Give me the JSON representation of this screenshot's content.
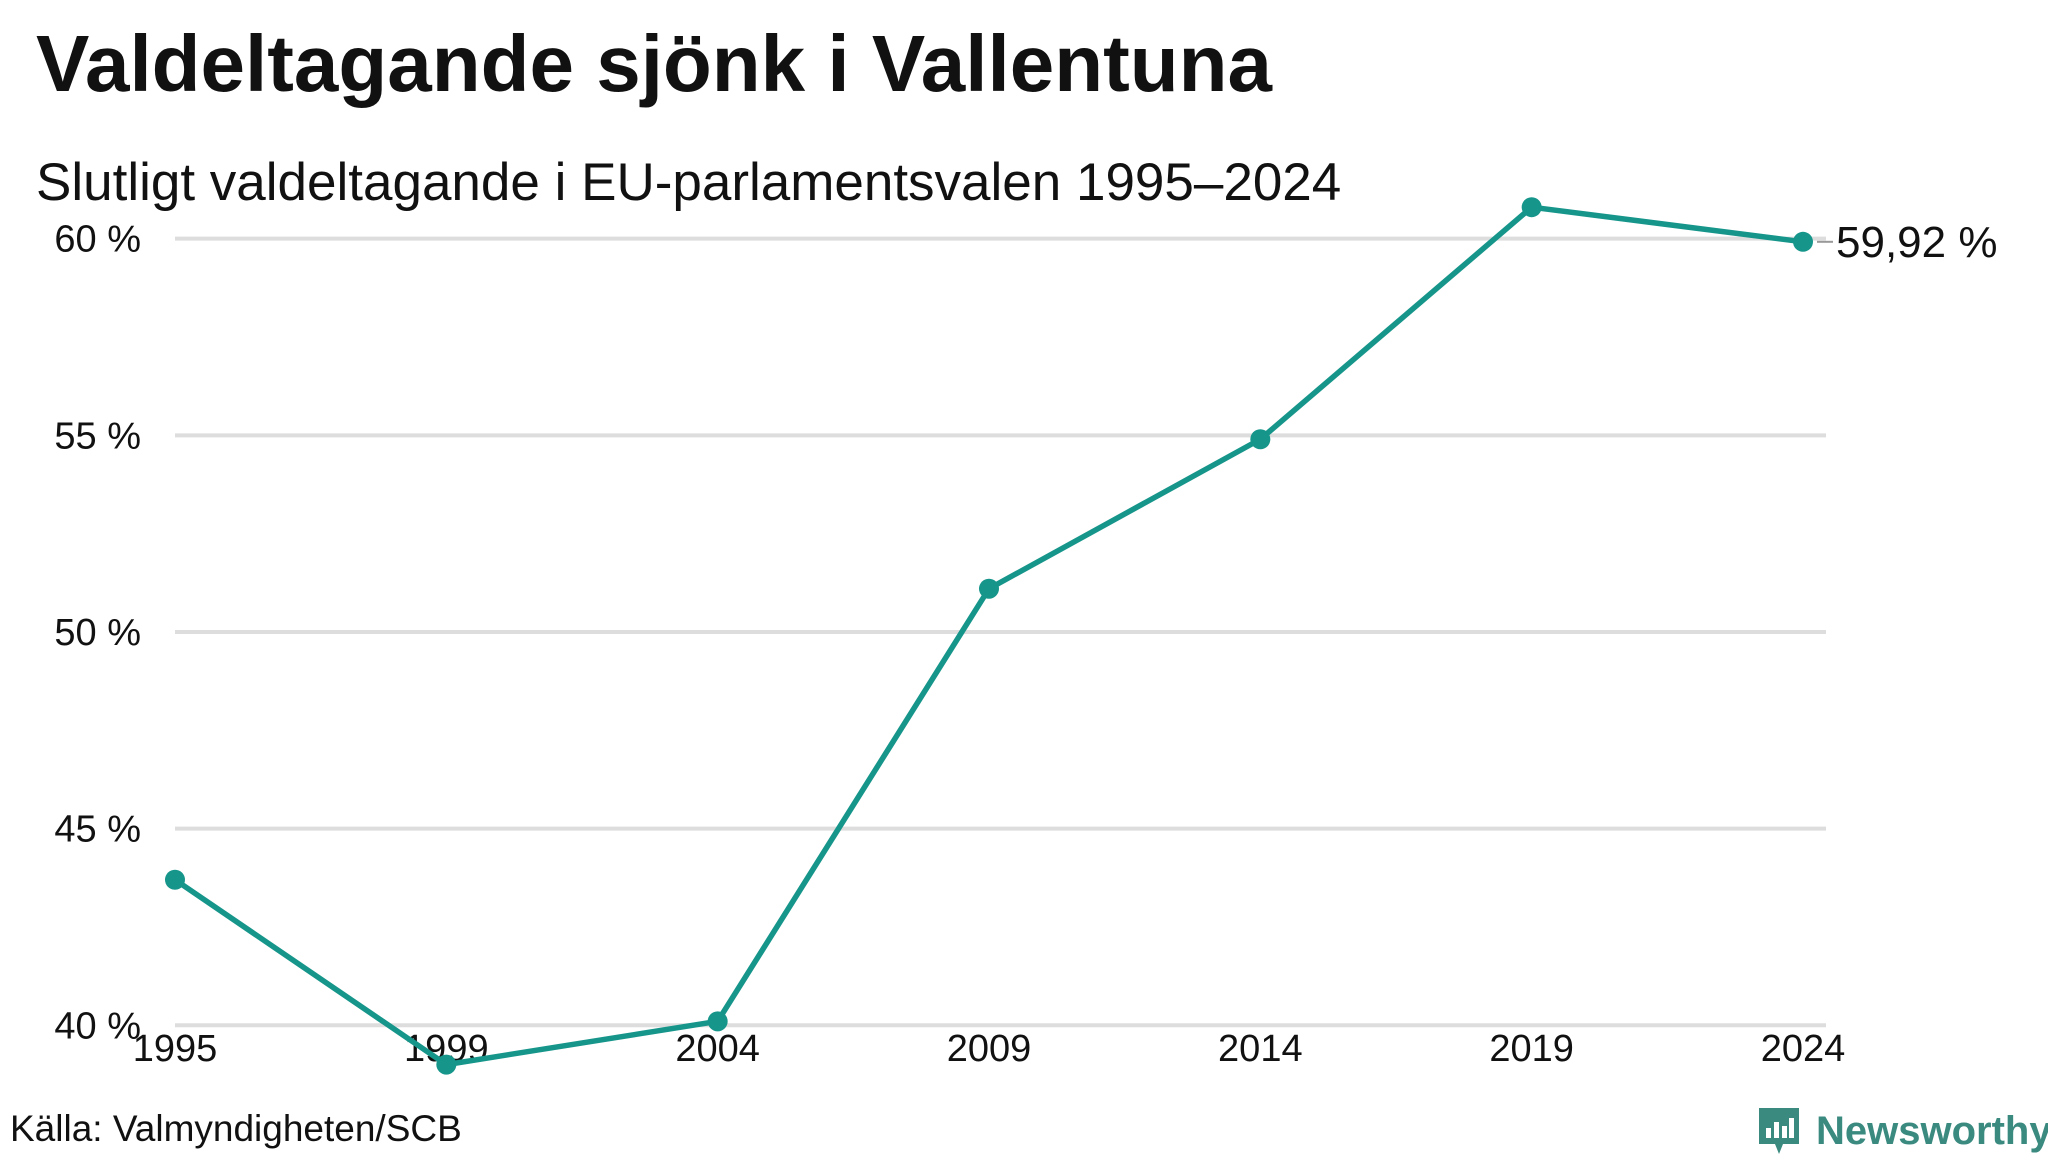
{
  "header": {
    "title": "Valdeltagande sjönk i Vallentuna",
    "subtitle": "Slutligt valdeltagande i EU-parlamentsvalen 1995–2024"
  },
  "footer": {
    "source": "Källa: Valmyndigheten/SCB",
    "brand": "Newsworthy"
  },
  "colors": {
    "line": "#16958a",
    "grid": "#dddddd",
    "brand": "#3a8a80"
  },
  "chart_data": {
    "type": "line",
    "title": "Valdeltagande sjönk i Vallentuna",
    "subtitle": "Slutligt valdeltagande i EU-parlamentsvalen 1995–2024",
    "xlabel": "",
    "ylabel": "",
    "categories": [
      "1995",
      "1999",
      "2004",
      "2009",
      "2014",
      "2019",
      "2024"
    ],
    "series": [
      {
        "values": [
          43.7,
          39.0,
          40.1,
          51.1,
          54.9,
          60.8,
          59.92
        ]
      }
    ],
    "ylim": [
      38.1,
      62
    ],
    "yticks": [
      40,
      45,
      50,
      55,
      60
    ],
    "ytick_labels": [
      "40 %",
      "45 %",
      "50 %",
      "55 %",
      "60 %"
    ],
    "grid": true,
    "end_label": "59,92 %",
    "legend": "none"
  }
}
